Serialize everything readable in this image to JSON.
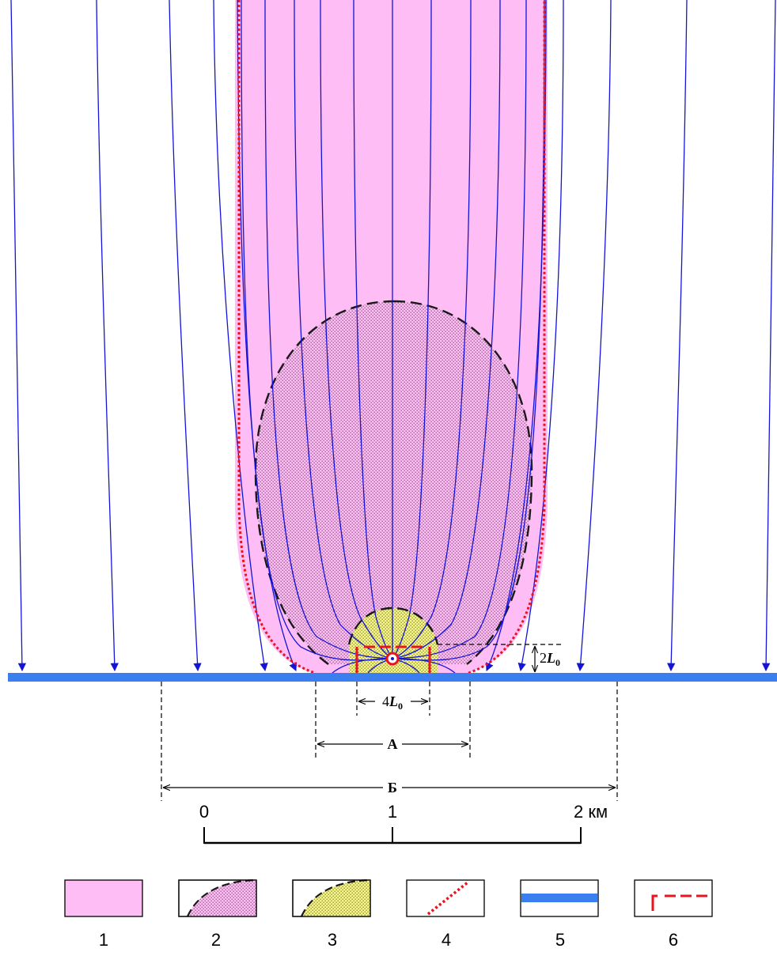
{
  "dimensions": {
    "four_l0": {
      "prefix": "4",
      "symbol": "L",
      "subscript": "0"
    },
    "two_l0": {
      "prefix": "2",
      "symbol": "L",
      "subscript": "0"
    },
    "zone_a": "А",
    "zone_b": "Б"
  },
  "scale_bar": {
    "ticks": [
      "0",
      "1",
      "2 км"
    ]
  },
  "legend": {
    "items": [
      {
        "number": "1",
        "symbol": "pink-fill"
      },
      {
        "number": "2",
        "symbol": "pink-dotted-dashed"
      },
      {
        "number": "3",
        "symbol": "yellow-dotted-dashed"
      },
      {
        "number": "4",
        "symbol": "red-dotted-line"
      },
      {
        "number": "5",
        "symbol": "blue-thick-line"
      },
      {
        "number": "6",
        "symbol": "red-dashed-corner"
      }
    ]
  },
  "colors": {
    "pink_zone": "#ffbdf5",
    "yellow_zone": "#f5f58a",
    "flow_lines": "#1414d8",
    "river": "#3a7ef0",
    "red_boundary": "#e8141e",
    "dashed_outline": "#1a1a1a"
  }
}
